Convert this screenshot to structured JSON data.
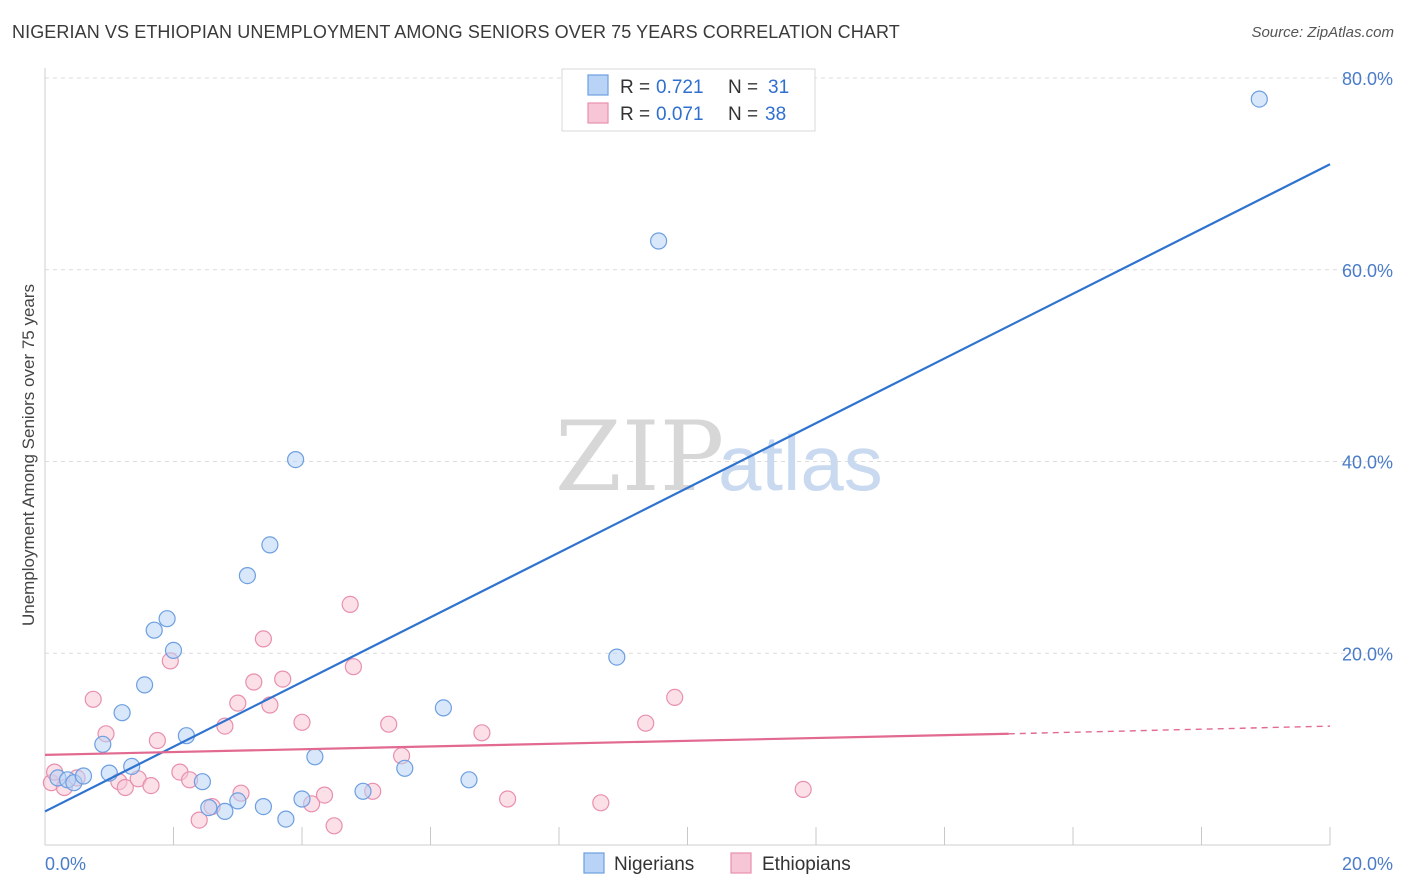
{
  "header": {
    "title": "NIGERIAN VS ETHIOPIAN UNEMPLOYMENT AMONG SENIORS OVER 75 YEARS CORRELATION CHART",
    "source": "Source: ZipAtlas.com"
  },
  "watermark": {
    "zip": "ZIP",
    "atlas": "atlas"
  },
  "colors": {
    "blue_fill": "#b8d3f5",
    "blue_stroke": "#6d9fe0",
    "blue_line": "#2f73d0",
    "pink_fill": "#f7c6d6",
    "pink_stroke": "#e98fae",
    "pink_line": "#e2698f",
    "grid": "#dcdcdc",
    "axis_text": "#4a7cc9"
  },
  "legend": {
    "rows": [
      {
        "r_label": "R =",
        "r_value": "0.721",
        "n_label": "N =",
        "n_value": "31"
      },
      {
        "r_label": "R =",
        "r_value": "0.071",
        "n_label": "N =",
        "n_value": "38"
      }
    ]
  },
  "bottom_legend": [
    "Nigerians",
    "Ethiopians"
  ],
  "chart_data": {
    "type": "scatter",
    "title": "NIGERIAN VS ETHIOPIAN UNEMPLOYMENT AMONG SENIORS OVER 75 YEARS CORRELATION CHART",
    "xlabel": "",
    "ylabel": "Unemployment Among Seniors over 75 years",
    "xlim": [
      0,
      20
    ],
    "ylim": [
      0,
      80
    ],
    "x_tick_labels": [
      "0.0%",
      "20.0%"
    ],
    "y_ticks": [
      20,
      40,
      60,
      80
    ],
    "y_tick_labels": [
      "20.0%",
      "40.0%",
      "60.0%",
      "80.0%"
    ],
    "grid": true,
    "legend_position": "top-center",
    "series": [
      {
        "name": "Nigerians",
        "r": 0.721,
        "n": 31,
        "trend": {
          "x0": 0,
          "y0": 3.5,
          "x1": 20,
          "y1": 71
        },
        "points": [
          [
            0.2,
            7.0
          ],
          [
            0.35,
            6.8
          ],
          [
            0.45,
            6.5
          ],
          [
            0.6,
            7.2
          ],
          [
            0.9,
            10.5
          ],
          [
            1.0,
            7.5
          ],
          [
            1.2,
            13.8
          ],
          [
            1.35,
            8.2
          ],
          [
            1.55,
            16.7
          ],
          [
            1.7,
            22.4
          ],
          [
            1.9,
            23.6
          ],
          [
            2.0,
            20.3
          ],
          [
            2.2,
            11.4
          ],
          [
            2.45,
            6.6
          ],
          [
            2.55,
            3.9
          ],
          [
            2.8,
            3.5
          ],
          [
            3.0,
            4.6
          ],
          [
            3.15,
            28.1
          ],
          [
            3.4,
            4.0
          ],
          [
            3.5,
            31.3
          ],
          [
            3.75,
            2.7
          ],
          [
            3.9,
            40.2
          ],
          [
            4.0,
            4.8
          ],
          [
            4.2,
            9.2
          ],
          [
            4.95,
            5.6
          ],
          [
            5.6,
            8.0
          ],
          [
            6.2,
            14.3
          ],
          [
            6.6,
            6.8
          ],
          [
            8.9,
            19.6
          ],
          [
            9.55,
            63.0
          ],
          [
            18.9,
            77.8
          ]
        ]
      },
      {
        "name": "Ethiopians",
        "r": 0.071,
        "n": 38,
        "trend": {
          "x0": 0,
          "y0": 9.4,
          "x1": 15,
          "y1": 11.6,
          "dash_x1": 20,
          "dash_y1": 12.4
        },
        "points": [
          [
            0.1,
            6.5
          ],
          [
            0.3,
            6.0
          ],
          [
            0.5,
            7.0
          ],
          [
            0.75,
            15.2
          ],
          [
            0.95,
            11.6
          ],
          [
            1.15,
            6.6
          ],
          [
            1.25,
            6.0
          ],
          [
            1.45,
            6.9
          ],
          [
            1.65,
            6.2
          ],
          [
            1.75,
            10.9
          ],
          [
            1.95,
            19.2
          ],
          [
            2.1,
            7.6
          ],
          [
            2.25,
            6.8
          ],
          [
            2.4,
            2.6
          ],
          [
            2.6,
            4.0
          ],
          [
            2.8,
            12.4
          ],
          [
            3.0,
            14.8
          ],
          [
            3.05,
            5.4
          ],
          [
            3.25,
            17.0
          ],
          [
            3.4,
            21.5
          ],
          [
            3.5,
            14.6
          ],
          [
            3.7,
            17.3
          ],
          [
            4.0,
            12.8
          ],
          [
            4.15,
            4.3
          ],
          [
            4.35,
            5.2
          ],
          [
            4.5,
            2.0
          ],
          [
            4.75,
            25.1
          ],
          [
            4.8,
            18.6
          ],
          [
            5.1,
            5.6
          ],
          [
            5.35,
            12.6
          ],
          [
            5.55,
            9.3
          ],
          [
            6.8,
            11.7
          ],
          [
            7.2,
            4.8
          ],
          [
            8.65,
            4.4
          ],
          [
            9.35,
            12.7
          ],
          [
            9.8,
            15.4
          ],
          [
            11.8,
            5.8
          ],
          [
            0.15,
            7.6
          ]
        ]
      }
    ]
  }
}
